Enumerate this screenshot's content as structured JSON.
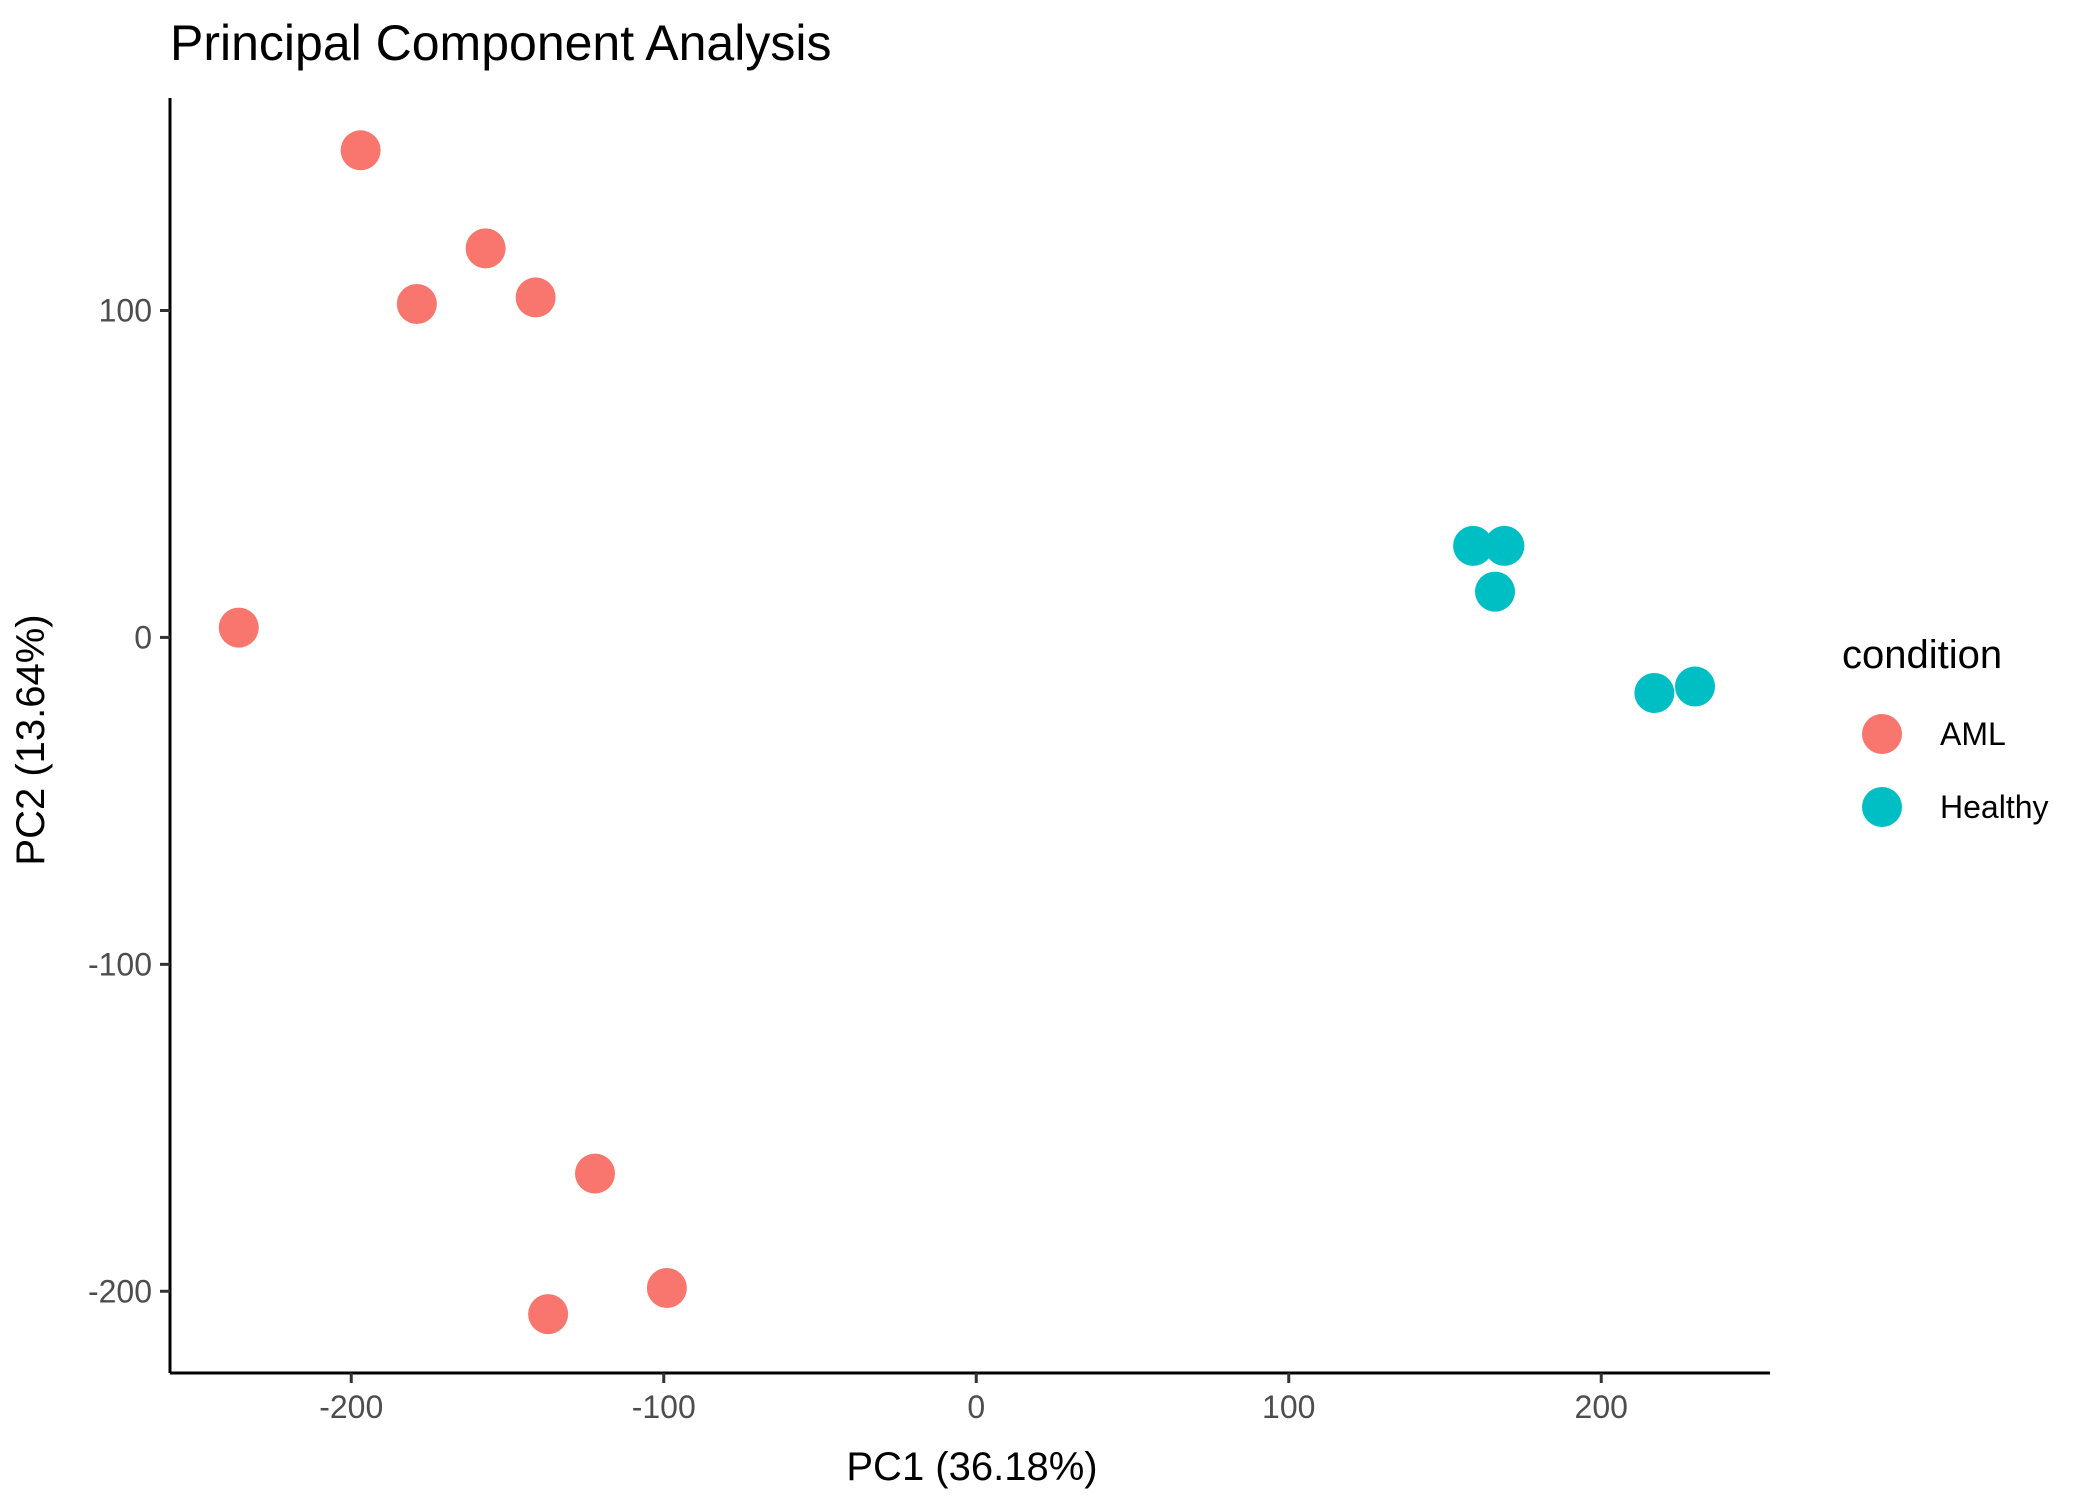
{
  "chart_data": {
    "type": "scatter",
    "title": "Principal Component Analysis",
    "xlabel": "PC1 (36.18%)",
    "ylabel": "PC2 (13.64%)",
    "xlim": [
      -258,
      254
    ],
    "ylim": [
      -225,
      165
    ],
    "x_ticks": [
      -200,
      -100,
      0,
      100,
      200
    ],
    "y_ticks": [
      -200,
      -100,
      0,
      100
    ],
    "grid": false,
    "legend": {
      "title": "condition",
      "position": "right"
    },
    "series": [
      {
        "name": "AML",
        "color": "#F8766D",
        "points": [
          {
            "x": -197,
            "y": 149
          },
          {
            "x": -157,
            "y": 119
          },
          {
            "x": -179,
            "y": 102
          },
          {
            "x": -141,
            "y": 104
          },
          {
            "x": -236,
            "y": 3
          },
          {
            "x": -122,
            "y": -164
          },
          {
            "x": -99,
            "y": -199
          },
          {
            "x": -137,
            "y": -207
          }
        ]
      },
      {
        "name": "Healthy",
        "color": "#00BFC4",
        "points": [
          {
            "x": 159,
            "y": 28
          },
          {
            "x": 169,
            "y": 28
          },
          {
            "x": 166,
            "y": 14
          },
          {
            "x": 217,
            "y": -17
          },
          {
            "x": 230,
            "y": -15
          }
        ]
      }
    ]
  }
}
